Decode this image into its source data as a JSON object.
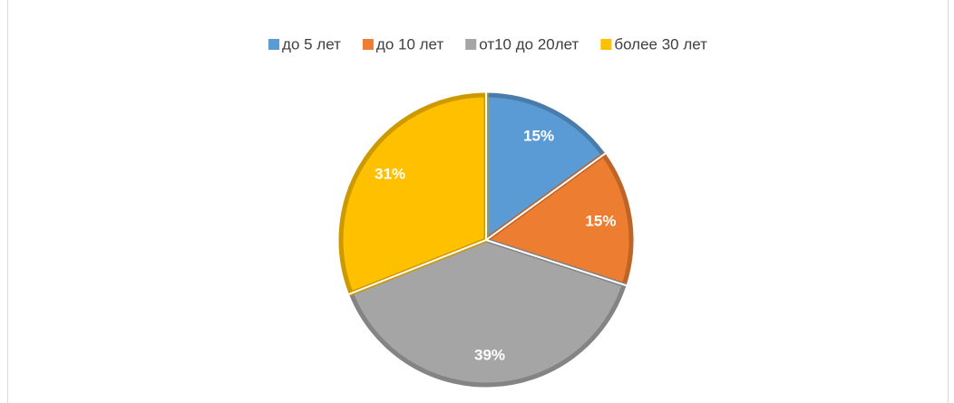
{
  "chart_data": {
    "type": "pie",
    "categories": [
      "до 5 лет",
      "до 10 лет",
      "от10 до 20лет",
      "более 30 лет"
    ],
    "values": [
      15,
      15,
      39,
      31
    ],
    "value_labels": [
      "15%",
      "15%",
      "39%",
      "31%"
    ],
    "colors": [
      "#5b9bd5",
      "#ed7d31",
      "#a5a5a5",
      "#ffc000"
    ],
    "legend": "top"
  }
}
